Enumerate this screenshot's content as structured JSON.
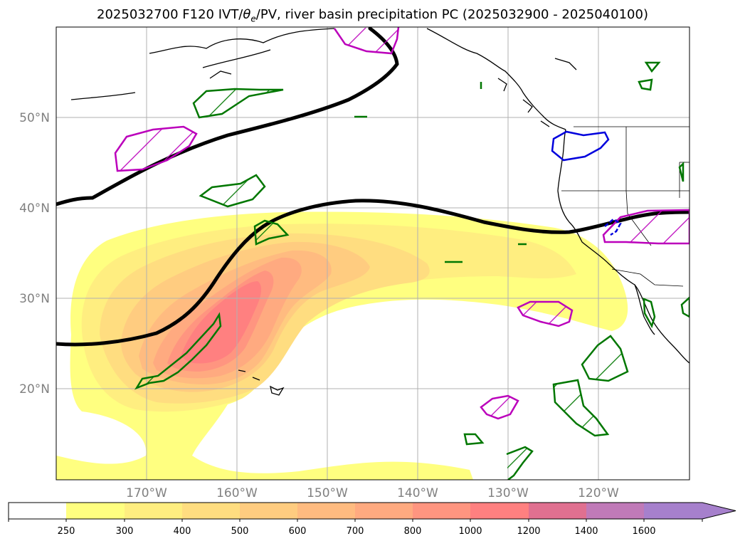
{
  "title": {
    "prefix": "2025032700 F120 IVT/",
    "theta": "θ",
    "theta_sub": "e",
    "suffix": "/PV, river basin precipitation PC (2025032900 - 2025040100)"
  },
  "map": {
    "projection": "plate-carree",
    "lon_range": [
      -180,
      -110
    ],
    "lat_range": [
      10,
      60
    ],
    "lat_ticks": [
      {
        "value": 50,
        "label": "50°N"
      },
      {
        "value": 40,
        "label": "40°N"
      },
      {
        "value": 30,
        "label": "30°N"
      },
      {
        "value": 20,
        "label": "20°N"
      }
    ],
    "lon_ticks": [
      {
        "value": -170,
        "label": "170°W"
      },
      {
        "value": -160,
        "label": "160°W"
      },
      {
        "value": -150,
        "label": "150°W"
      },
      {
        "value": -140,
        "label": "140°W"
      },
      {
        "value": -130,
        "label": "130°W"
      },
      {
        "value": -120,
        "label": "120°W"
      }
    ],
    "grid": true,
    "pv_contour_color": "#000000",
    "precip_pc_colors": [
      "#0000dd",
      "#bb00bb",
      "#007700"
    ]
  },
  "colorbar": {
    "levels": [
      "250",
      "300",
      "400",
      "500",
      "600",
      "700",
      "800",
      "1000",
      "1200",
      "1400",
      "1600"
    ],
    "colors": [
      "#ffff80",
      "#ffee80",
      "#ffdd80",
      "#ffcc80",
      "#ffbb80",
      "#ffaa80",
      "#ff9580",
      "#ff8080",
      "#e07090",
      "#c07ab8",
      "#a680cc"
    ],
    "below_color": "#ffffff",
    "extend": "max"
  }
}
